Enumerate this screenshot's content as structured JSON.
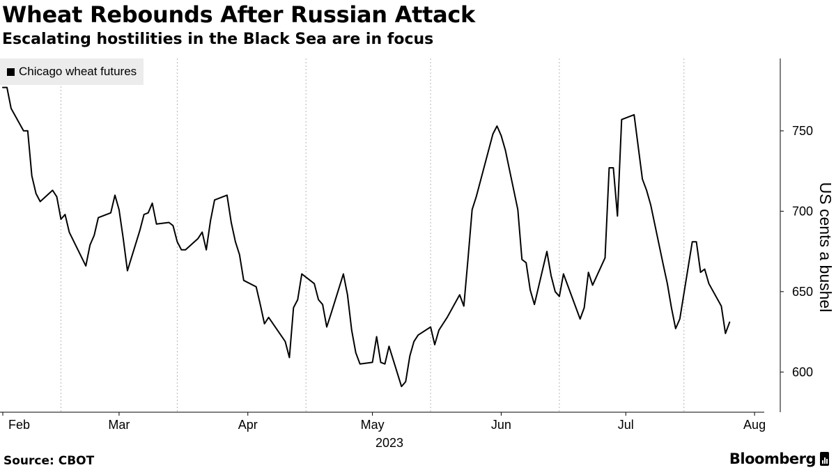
{
  "header": {
    "title": "Wheat Rebounds After Russian Attack",
    "subtitle": "Escalating hostilities in the Black Sea are in focus"
  },
  "footer": {
    "source": "Source: CBOT",
    "brand": "Bloomberg"
  },
  "chart_data": {
    "type": "line",
    "title": "Wheat Rebounds After Russian Attack",
    "subtitle": "Escalating hostilities in the Black Sea are in focus",
    "ylabel": "US cents a bushel",
    "xlabel": "",
    "year_label": "2023",
    "ylim": [
      575,
      795
    ],
    "yticks": [
      600,
      650,
      700,
      750
    ],
    "xlim": [
      "2023-02-01",
      "2023-08-03"
    ],
    "x_ticks": [
      {
        "date": "2023-02-01",
        "label": "Feb"
      },
      {
        "date": "2023-03-01",
        "label": "Mar"
      },
      {
        "date": "2023-04-01",
        "label": "Apr"
      },
      {
        "date": "2023-05-01",
        "label": "May"
      },
      {
        "date": "2023-06-01",
        "label": "Jun"
      },
      {
        "date": "2023-07-01",
        "label": "Jul"
      },
      {
        "date": "2023-08-01",
        "label": "Aug"
      }
    ],
    "grid_dates": [
      "2023-02-15",
      "2023-03-15",
      "2023-04-15",
      "2023-05-15",
      "2023-06-15",
      "2023-07-15"
    ],
    "grid": "vertical dotted",
    "legend_position": "top-left",
    "color": "#000000",
    "series": [
      {
        "name": "Chicago wheat futures",
        "points": [
          [
            "2023-02-01",
            777
          ],
          [
            "2023-02-02",
            777
          ],
          [
            "2023-02-03",
            764
          ],
          [
            "2023-02-06",
            750
          ],
          [
            "2023-02-07",
            750
          ],
          [
            "2023-02-08",
            722
          ],
          [
            "2023-02-09",
            711
          ],
          [
            "2023-02-10",
            706
          ],
          [
            "2023-02-13",
            713
          ],
          [
            "2023-02-14",
            709
          ],
          [
            "2023-02-15",
            695
          ],
          [
            "2023-02-16",
            698
          ],
          [
            "2023-02-17",
            687
          ],
          [
            "2023-02-21",
            666
          ],
          [
            "2023-02-22",
            679
          ],
          [
            "2023-02-23",
            685
          ],
          [
            "2023-02-24",
            696
          ],
          [
            "2023-02-27",
            699
          ],
          [
            "2023-02-28",
            710
          ],
          [
            "2023-03-01",
            701
          ],
          [
            "2023-03-02",
            683
          ],
          [
            "2023-03-03",
            663
          ],
          [
            "2023-03-06",
            688
          ],
          [
            "2023-03-07",
            698
          ],
          [
            "2023-03-08",
            699
          ],
          [
            "2023-03-09",
            705
          ],
          [
            "2023-03-10",
            692
          ],
          [
            "2023-03-13",
            693
          ],
          [
            "2023-03-14",
            691
          ],
          [
            "2023-03-15",
            681
          ],
          [
            "2023-03-16",
            676
          ],
          [
            "2023-03-17",
            676
          ],
          [
            "2023-03-20",
            683
          ],
          [
            "2023-03-21",
            687
          ],
          [
            "2023-03-22",
            676
          ],
          [
            "2023-03-23",
            694
          ],
          [
            "2023-03-24",
            707
          ],
          [
            "2023-03-27",
            710
          ],
          [
            "2023-03-28",
            693
          ],
          [
            "2023-03-29",
            681
          ],
          [
            "2023-03-30",
            673
          ],
          [
            "2023-03-31",
            657
          ],
          [
            "2023-04-03",
            653
          ],
          [
            "2023-04-04",
            642
          ],
          [
            "2023-04-05",
            630
          ],
          [
            "2023-04-06",
            634
          ],
          [
            "2023-04-10",
            619
          ],
          [
            "2023-04-11",
            609
          ],
          [
            "2023-04-12",
            640
          ],
          [
            "2023-04-13",
            645
          ],
          [
            "2023-04-14",
            661
          ],
          [
            "2023-04-17",
            655
          ],
          [
            "2023-04-18",
            645
          ],
          [
            "2023-04-19",
            642
          ],
          [
            "2023-04-20",
            628
          ],
          [
            "2023-04-21",
            636
          ],
          [
            "2023-04-24",
            661
          ],
          [
            "2023-04-25",
            648
          ],
          [
            "2023-04-26",
            626
          ],
          [
            "2023-04-27",
            612
          ],
          [
            "2023-04-28",
            605
          ],
          [
            "2023-05-01",
            606
          ],
          [
            "2023-05-02",
            622
          ],
          [
            "2023-05-03",
            606
          ],
          [
            "2023-05-04",
            605
          ],
          [
            "2023-05-05",
            616
          ],
          [
            "2023-05-08",
            591
          ],
          [
            "2023-05-09",
            594
          ],
          [
            "2023-05-10",
            610
          ],
          [
            "2023-05-11",
            619
          ],
          [
            "2023-05-12",
            623
          ],
          [
            "2023-05-15",
            628
          ],
          [
            "2023-05-16",
            617
          ],
          [
            "2023-05-17",
            626
          ],
          [
            "2023-05-18",
            630
          ],
          [
            "2023-05-19",
            634
          ],
          [
            "2023-05-22",
            648
          ],
          [
            "2023-05-23",
            641
          ],
          [
            "2023-05-24",
            670
          ],
          [
            "2023-05-25",
            701
          ],
          [
            "2023-05-26",
            709
          ],
          [
            "2023-05-30",
            748
          ],
          [
            "2023-05-31",
            753
          ],
          [
            "2023-06-01",
            747
          ],
          [
            "2023-06-02",
            738
          ],
          [
            "2023-06-05",
            701
          ],
          [
            "2023-06-06",
            670
          ],
          [
            "2023-06-07",
            668
          ],
          [
            "2023-06-08",
            651
          ],
          [
            "2023-06-09",
            642
          ],
          [
            "2023-06-12",
            675
          ],
          [
            "2023-06-13",
            660
          ],
          [
            "2023-06-14",
            650
          ],
          [
            "2023-06-15",
            647
          ],
          [
            "2023-06-16",
            661
          ],
          [
            "2023-06-20",
            633
          ],
          [
            "2023-06-21",
            640
          ],
          [
            "2023-06-22",
            662
          ],
          [
            "2023-06-23",
            654
          ],
          [
            "2023-06-26",
            671
          ],
          [
            "2023-06-27",
            727
          ],
          [
            "2023-06-28",
            727
          ],
          [
            "2023-06-29",
            697
          ],
          [
            "2023-06-30",
            757
          ],
          [
            "2023-07-03",
            760
          ],
          [
            "2023-07-05",
            720
          ],
          [
            "2023-07-06",
            713
          ],
          [
            "2023-07-07",
            704
          ],
          [
            "2023-07-10",
            667
          ],
          [
            "2023-07-11",
            655
          ],
          [
            "2023-07-12",
            640
          ],
          [
            "2023-07-13",
            627
          ],
          [
            "2023-07-14",
            633
          ],
          [
            "2023-07-17",
            681
          ],
          [
            "2023-07-18",
            681
          ],
          [
            "2023-07-19",
            662
          ],
          [
            "2023-07-20",
            664
          ],
          [
            "2023-07-21",
            655
          ],
          [
            "2023-07-24",
            641
          ],
          [
            "2023-07-25",
            624
          ],
          [
            "2023-07-26",
            631
          ]
        ]
      }
    ]
  }
}
